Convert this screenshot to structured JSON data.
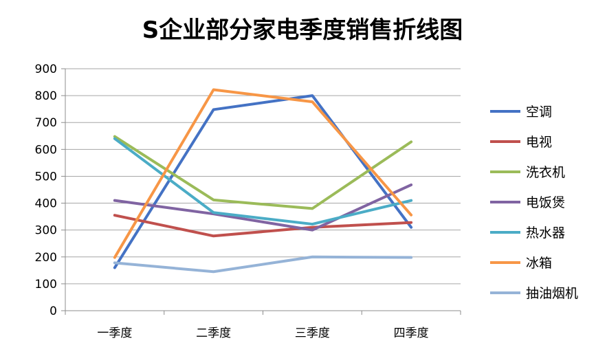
{
  "chart_data": {
    "type": "line",
    "title": "S企业部分家电季度销售折线图",
    "categories": [
      "一季度",
      "二季度",
      "三季度",
      "四季度"
    ],
    "ylim": [
      0,
      900
    ],
    "yticks": [
      "0",
      "100",
      "200",
      "300",
      "400",
      "500",
      "600",
      "700",
      "800",
      "900"
    ],
    "grid": true,
    "legend_position": "right",
    "series": [
      {
        "name": "空调",
        "color": "#4472C4",
        "values": [
          160,
          748,
          800,
          310
        ]
      },
      {
        "name": "电视",
        "color": "#C0504D",
        "values": [
          355,
          278,
          310,
          328
        ]
      },
      {
        "name": "洗衣机",
        "color": "#9BBB59",
        "values": [
          648,
          412,
          380,
          628
        ]
      },
      {
        "name": "电饭煲",
        "color": "#8064A2",
        "values": [
          410,
          360,
          300,
          468
        ]
      },
      {
        "name": "热水器",
        "color": "#4BACC6",
        "values": [
          640,
          365,
          322,
          410
        ]
      },
      {
        "name": "冰箱",
        "color": "#F79646",
        "values": [
          198,
          822,
          777,
          356
        ]
      },
      {
        "name": "抽油烟机",
        "color": "#95B3D7",
        "values": [
          178,
          145,
          200,
          198
        ]
      }
    ]
  }
}
